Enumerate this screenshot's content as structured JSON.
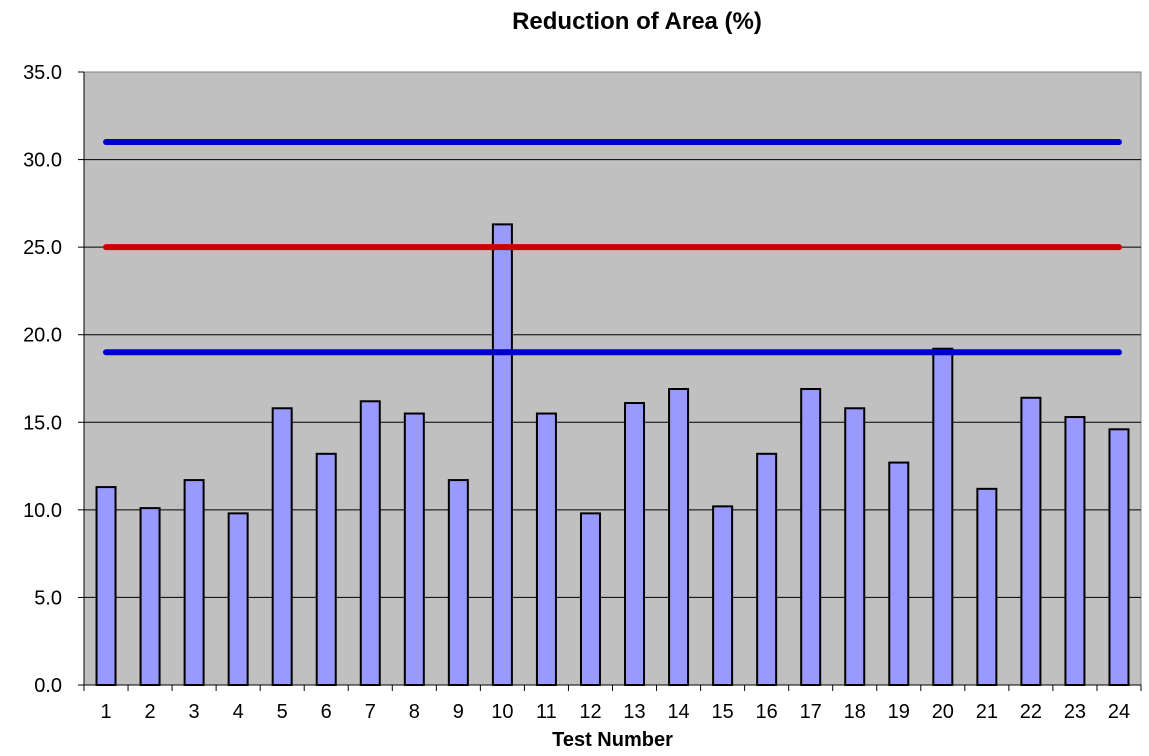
{
  "chart_data": {
    "type": "bar",
    "title": "Reduction of Area (%)",
    "xlabel": "Test Number",
    "ylabel": "",
    "ylim": [
      0,
      35
    ],
    "y_ticks": [
      "0.0",
      "5.0",
      "10.0",
      "15.0",
      "20.0",
      "25.0",
      "30.0",
      "35.0"
    ],
    "grid": true,
    "legend": "none",
    "categories": [
      "1",
      "2",
      "3",
      "4",
      "5",
      "6",
      "7",
      "8",
      "9",
      "10",
      "11",
      "12",
      "13",
      "14",
      "15",
      "16",
      "17",
      "18",
      "19",
      "20",
      "21",
      "22",
      "23",
      "24"
    ],
    "series": [
      {
        "values": [
          11.3,
          10.1,
          11.7,
          9.8,
          15.8,
          13.2,
          16.2,
          15.5,
          11.7,
          26.3,
          15.5,
          9.8,
          16.1,
          16.9,
          10.2,
          13.2,
          16.9,
          15.8,
          12.7,
          19.2,
          11.2,
          16.4,
          15.3,
          14.6
        ]
      }
    ],
    "reference_lines": [
      {
        "y": 31.0,
        "color": "#0000cc"
      },
      {
        "y": 25.0,
        "color": "#cc0000"
      },
      {
        "y": 19.0,
        "color": "#0000cc"
      }
    ],
    "colors": {
      "bar_fill": "#9999ff",
      "bar_stroke": "#000000",
      "plot_background": "#c0c0c0"
    }
  }
}
